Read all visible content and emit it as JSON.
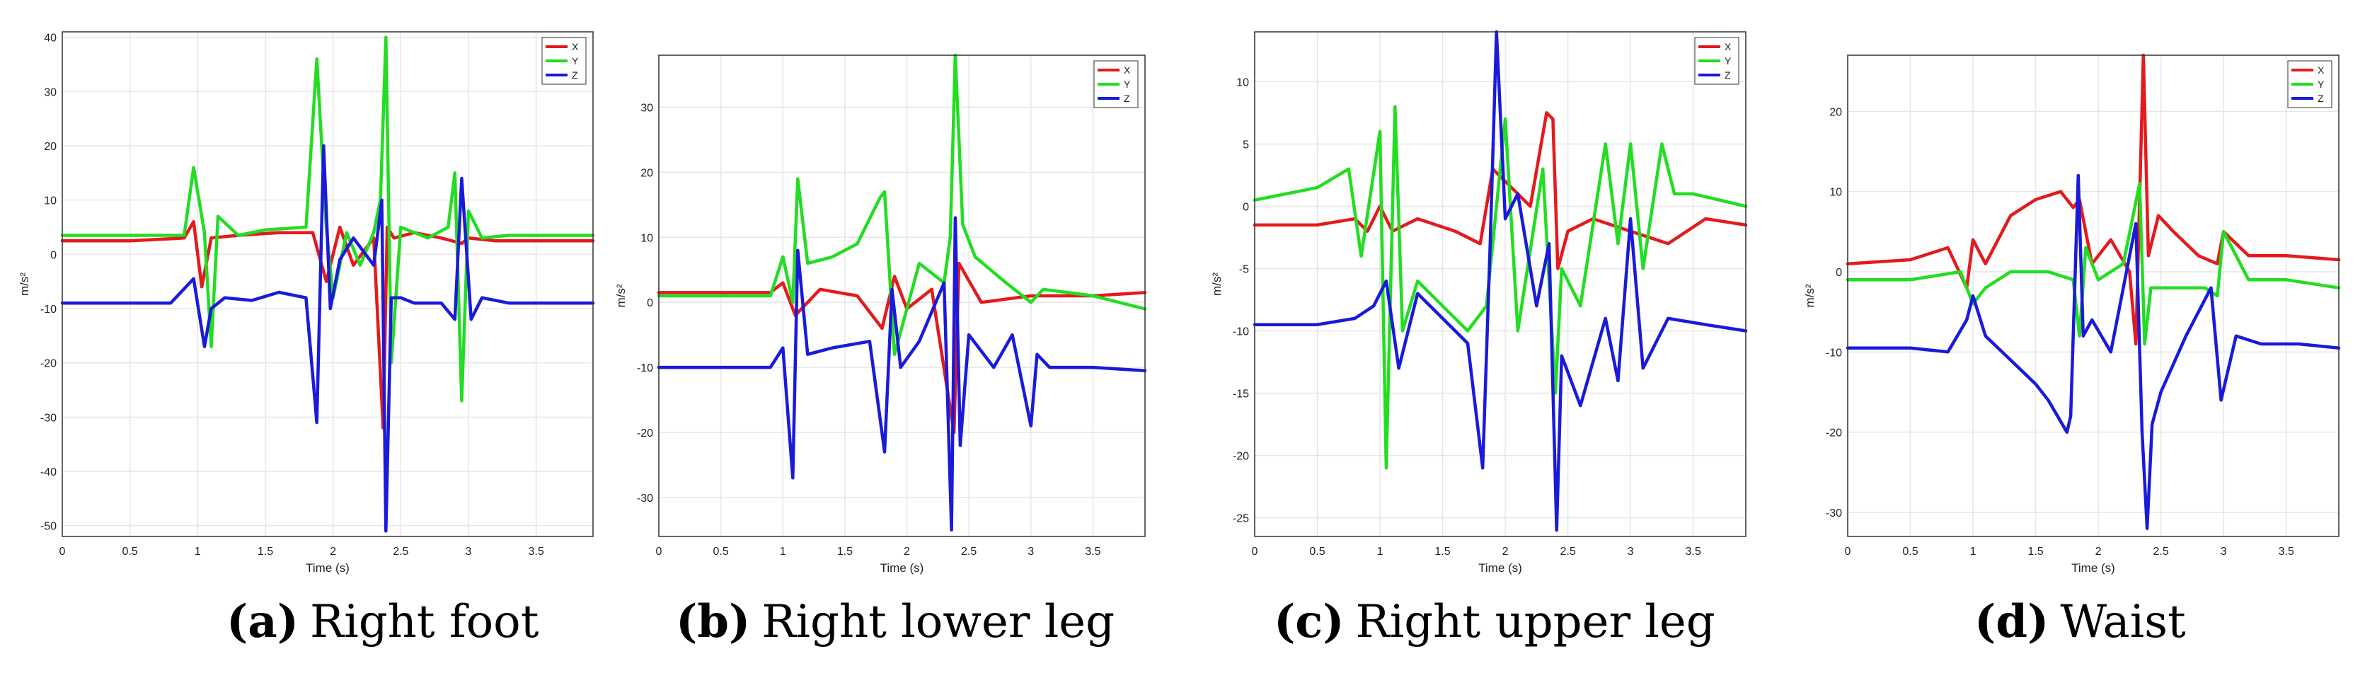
{
  "chart_data": [
    {
      "type": "line",
      "caption_letter": "a",
      "caption_text": "Right foot",
      "xlabel": "Time (s)",
      "ylabel": "m/s²",
      "xlim": [
        0,
        3.92
      ],
      "ylim": [
        -52,
        41
      ],
      "xticks": [
        0,
        0.5,
        1,
        1.5,
        2,
        2.5,
        3,
        3.5
      ],
      "xtick_labels": [
        "0",
        "0.5",
        "1",
        "1.5",
        "2",
        "2.5",
        "3",
        "3.5"
      ],
      "yticks": [
        -50,
        -40,
        -30,
        -20,
        -10,
        0,
        10,
        20,
        30,
        40
      ],
      "ytick_labels": [
        "-50",
        "-40",
        "-30",
        "-20",
        "-10",
        "0",
        "10",
        "20",
        "30",
        "40"
      ],
      "grid": true,
      "legend": "top-right",
      "series": [
        {
          "name": "X",
          "color": "#e41a1c",
          "x": [
            0,
            0.5,
            0.9,
            0.97,
            1.03,
            1.1,
            1.3,
            1.6,
            1.85,
            1.95,
            2.05,
            2.15,
            2.3,
            2.37,
            2.4,
            2.45,
            2.6,
            2.8,
            2.95,
            3.0,
            3.2,
            3.5,
            3.92
          ],
          "y": [
            2.5,
            2.5,
            3,
            6,
            -6,
            3,
            3.5,
            4,
            4,
            -5,
            5,
            -2,
            3,
            -32,
            5,
            3,
            4,
            3,
            2,
            3,
            2.5,
            2.5,
            2.5
          ]
        },
        {
          "name": "Y",
          "color": "#22dd22",
          "x": [
            0,
            0.9,
            0.97,
            1.05,
            1.1,
            1.15,
            1.3,
            1.5,
            1.8,
            1.88,
            1.95,
            2.0,
            2.1,
            2.2,
            2.3,
            2.35,
            2.39,
            2.43,
            2.5,
            2.7,
            2.85,
            2.9,
            2.95,
            3.0,
            3.1,
            3.3,
            3.92
          ],
          "y": [
            3.5,
            3.5,
            16,
            4,
            -17,
            7,
            3.5,
            4.5,
            5,
            36,
            5,
            -8,
            4,
            -2,
            4,
            10,
            40,
            -20,
            5,
            3,
            5,
            15,
            -27,
            8,
            3,
            3.5,
            3.5
          ]
        },
        {
          "name": "Z",
          "color": "#1a1adb",
          "x": [
            0,
            0.8,
            0.97,
            1.05,
            1.1,
            1.2,
            1.4,
            1.6,
            1.8,
            1.88,
            1.93,
            1.98,
            2.05,
            2.15,
            2.3,
            2.36,
            2.39,
            2.43,
            2.5,
            2.6,
            2.8,
            2.9,
            2.95,
            3.02,
            3.1,
            3.3,
            3.92
          ],
          "y": [
            -9,
            -9,
            -4.5,
            -17,
            -10,
            -8,
            -8.5,
            -7,
            -8,
            -31,
            20,
            -10,
            -1,
            3,
            -2,
            10,
            -51,
            -8,
            -8,
            -9,
            -9,
            -12,
            14,
            -12,
            -8,
            -9,
            -9
          ]
        }
      ]
    },
    {
      "type": "line",
      "caption_letter": "b",
      "caption_text": "Right lower leg",
      "xlabel": "Time (s)",
      "ylabel": "m/s²",
      "xlim": [
        0,
        3.92
      ],
      "ylim": [
        -36,
        38
      ],
      "xticks": [
        0,
        0.5,
        1,
        1.5,
        2,
        2.5,
        3,
        3.5
      ],
      "xtick_labels": [
        "0",
        "0.5",
        "1",
        "1.5",
        "2",
        "2.5",
        "3",
        "3.5"
      ],
      "yticks": [
        -30,
        -20,
        -10,
        0,
        10,
        20,
        30
      ],
      "ytick_labels": [
        "-30",
        "-20",
        "-10",
        "0",
        "10",
        "20",
        "30"
      ],
      "grid": true,
      "legend": "top-right",
      "series": [
        {
          "name": "X",
          "color": "#e41a1c",
          "x": [
            0,
            0.9,
            1.0,
            1.1,
            1.3,
            1.6,
            1.8,
            1.9,
            2.0,
            2.2,
            2.38,
            2.42,
            2.6,
            3.0,
            3.5,
            3.92
          ],
          "y": [
            1.5,
            1.5,
            3,
            -2,
            2,
            1,
            -4,
            4,
            -1,
            2,
            -20,
            6,
            0,
            1,
            1,
            1.5
          ]
        },
        {
          "name": "Y",
          "color": "#22dd22",
          "x": [
            0,
            0.9,
            1.0,
            1.08,
            1.12,
            1.2,
            1.4,
            1.6,
            1.78,
            1.82,
            1.9,
            2.1,
            2.3,
            2.35,
            2.39,
            2.45,
            2.55,
            2.8,
            3.0,
            3.1,
            3.5,
            3.92
          ],
          "y": [
            1,
            1,
            7,
            0,
            19,
            6,
            7,
            9,
            16,
            17,
            -8,
            6,
            3,
            10,
            38,
            12,
            7,
            3,
            0,
            2,
            1,
            -1
          ]
        },
        {
          "name": "Z",
          "color": "#1a1adb",
          "x": [
            0,
            0.9,
            1.0,
            1.08,
            1.12,
            1.2,
            1.4,
            1.7,
            1.82,
            1.88,
            1.95,
            2.1,
            2.3,
            2.36,
            2.39,
            2.43,
            2.5,
            2.7,
            2.85,
            3.0,
            3.05,
            3.15,
            3.5,
            3.92
          ],
          "y": [
            -10,
            -10,
            -7,
            -27,
            8,
            -8,
            -7,
            -6,
            -23,
            2,
            -10,
            -6,
            3,
            -35,
            13,
            -22,
            -5,
            -10,
            -5,
            -19,
            -8,
            -10,
            -10,
            -10.5
          ]
        }
      ]
    },
    {
      "type": "line",
      "caption_letter": "c",
      "caption_text": "Right upper leg",
      "xlabel": "Time (s)",
      "ylabel": "m/s²",
      "xlim": [
        0,
        3.92
      ],
      "ylim": [
        -26.5,
        14
      ],
      "xticks": [
        0,
        0.5,
        1,
        1.5,
        2,
        2.5,
        3,
        3.5
      ],
      "xtick_labels": [
        "0",
        "0.5",
        "1",
        "1.5",
        "2",
        "2.5",
        "3",
        "3.5"
      ],
      "yticks": [
        -25,
        -20,
        -15,
        -10,
        -5,
        0,
        5,
        10
      ],
      "ytick_labels": [
        "-25",
        "-20",
        "-15",
        "-10",
        "-5",
        "0",
        "5",
        "10"
      ],
      "grid": true,
      "legend": "top-right",
      "series": [
        {
          "name": "X",
          "color": "#e41a1c",
          "x": [
            0,
            0.5,
            0.8,
            0.9,
            1.0,
            1.1,
            1.3,
            1.6,
            1.8,
            1.9,
            2.0,
            2.2,
            2.33,
            2.38,
            2.42,
            2.5,
            2.7,
            3.0,
            3.3,
            3.6,
            3.92
          ],
          "y": [
            -1.5,
            -1.5,
            -1,
            -2,
            0,
            -2,
            -1,
            -2,
            -3,
            3,
            2,
            0,
            7.5,
            7,
            -5,
            -2,
            -1,
            -2,
            -3,
            -1,
            -1.5
          ]
        },
        {
          "name": "Y",
          "color": "#22dd22",
          "x": [
            0,
            0.5,
            0.75,
            0.85,
            1.0,
            1.05,
            1.12,
            1.18,
            1.3,
            1.5,
            1.7,
            1.85,
            2.0,
            2.1,
            2.3,
            2.4,
            2.45,
            2.6,
            2.8,
            2.9,
            3.0,
            3.1,
            3.25,
            3.35,
            3.5,
            3.92
          ],
          "y": [
            0.5,
            1.5,
            3,
            -4,
            6,
            -21,
            8,
            -10,
            -6,
            -8,
            -10,
            -8,
            7,
            -10,
            3,
            -15,
            -5,
            -8,
            5,
            -3,
            5,
            -5,
            5,
            1,
            1,
            0
          ]
        },
        {
          "name": "Z",
          "color": "#1a1adb",
          "x": [
            0,
            0.5,
            0.8,
            0.95,
            1.05,
            1.15,
            1.3,
            1.5,
            1.7,
            1.82,
            1.88,
            1.93,
            2.0,
            2.1,
            2.25,
            2.35,
            2.41,
            2.45,
            2.6,
            2.8,
            2.9,
            3.0,
            3.1,
            3.3,
            3.6,
            3.92
          ],
          "y": [
            -9.5,
            -9.5,
            -9,
            -8,
            -6,
            -13,
            -7,
            -9,
            -11,
            -21,
            -3,
            14,
            -1,
            1,
            -8,
            -3,
            -26,
            -12,
            -16,
            -9,
            -14,
            -1,
            -13,
            -9,
            -9.5,
            -10
          ]
        }
      ]
    },
    {
      "type": "line",
      "caption_letter": "d",
      "caption_text": "Waist",
      "xlabel": "Time (s)",
      "ylabel": "m/s²",
      "xlim": [
        0,
        3.92
      ],
      "ylim": [
        -33,
        27
      ],
      "xticks": [
        0,
        0.5,
        1,
        1.5,
        2,
        2.5,
        3,
        3.5
      ],
      "xtick_labels": [
        "0",
        "0.5",
        "1",
        "1.5",
        "2",
        "2.5",
        "3",
        "3.5"
      ],
      "yticks": [
        -30,
        -20,
        -10,
        0,
        10,
        20
      ],
      "ytick_labels": [
        "-30",
        "-20",
        "-10",
        "0",
        "10",
        "20"
      ],
      "grid": true,
      "legend": "top-right",
      "series": [
        {
          "name": "X",
          "color": "#e41a1c",
          "x": [
            0,
            0.5,
            0.8,
            0.95,
            1.0,
            1.1,
            1.3,
            1.5,
            1.7,
            1.8,
            1.85,
            1.95,
            2.1,
            2.25,
            2.3,
            2.36,
            2.4,
            2.48,
            2.6,
            2.8,
            2.95,
            3.0,
            3.2,
            3.5,
            3.92
          ],
          "y": [
            1,
            1.5,
            3,
            -2,
            4,
            1,
            7,
            9,
            10,
            8,
            9,
            1,
            4,
            0,
            -9,
            27,
            2,
            7,
            5,
            2,
            1,
            5,
            2,
            2,
            1.5
          ]
        },
        {
          "name": "Y",
          "color": "#22dd22",
          "x": [
            0,
            0.5,
            0.9,
            1.0,
            1.1,
            1.3,
            1.6,
            1.8,
            1.85,
            1.9,
            2.0,
            2.2,
            2.33,
            2.37,
            2.42,
            2.6,
            2.85,
            2.95,
            3.0,
            3.2,
            3.5,
            3.92
          ],
          "y": [
            -1,
            -1,
            0,
            -4,
            -2,
            0,
            0,
            -1,
            -8,
            3,
            -1,
            1,
            11,
            -9,
            -2,
            -2,
            -2,
            -3,
            5,
            -1,
            -1,
            -2
          ]
        },
        {
          "name": "Z",
          "color": "#1a1adb",
          "x": [
            0,
            0.5,
            0.8,
            0.95,
            1.0,
            1.1,
            1.3,
            1.5,
            1.6,
            1.75,
            1.78,
            1.84,
            1.88,
            1.95,
            2.1,
            2.3,
            2.35,
            2.39,
            2.43,
            2.5,
            2.7,
            2.9,
            2.98,
            3.1,
            3.3,
            3.6,
            3.92
          ],
          "y": [
            -9.5,
            -9.5,
            -10,
            -6,
            -3,
            -8,
            -11,
            -14,
            -16,
            -20,
            -18,
            12,
            -8,
            -6,
            -10,
            6,
            -20,
            -32,
            -19,
            -15,
            -8,
            -2,
            -16,
            -8,
            -9,
            -9,
            -9.5
          ]
        }
      ]
    }
  ]
}
